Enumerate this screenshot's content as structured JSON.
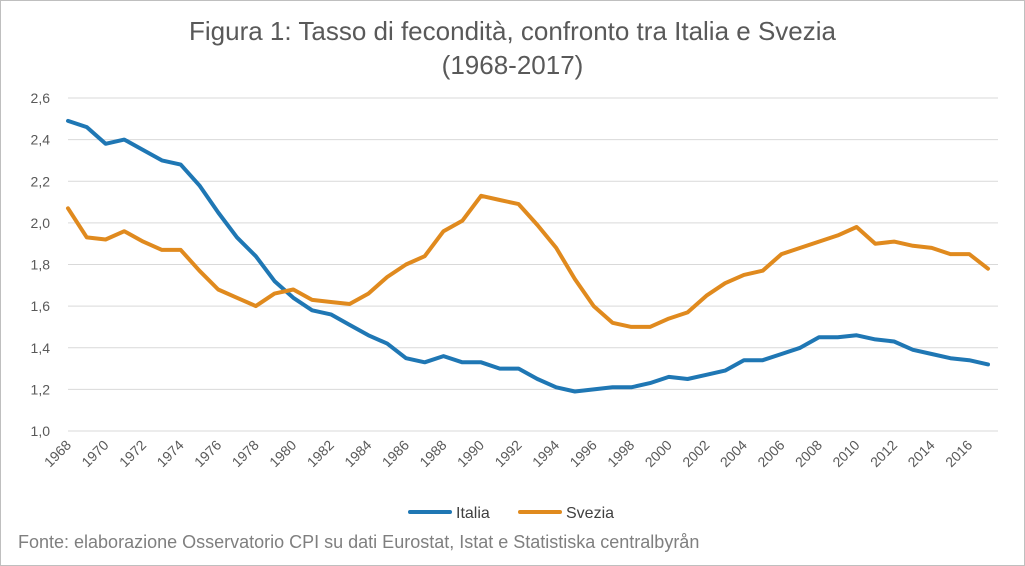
{
  "chart_data": {
    "type": "line",
    "title_line1": "Figura 1: Tasso di fecondità, confronto tra Italia e Svezia",
    "title_line2": "(1968-2017)",
    "source": "Fonte: elaborazione Osservatorio CPI su dati Eurostat, Istat e Statistiska centralbyrån",
    "x": [
      1968,
      1969,
      1970,
      1971,
      1972,
      1973,
      1974,
      1975,
      1976,
      1977,
      1978,
      1979,
      1980,
      1981,
      1982,
      1983,
      1984,
      1985,
      1986,
      1987,
      1988,
      1989,
      1990,
      1991,
      1992,
      1993,
      1994,
      1995,
      1996,
      1997,
      1998,
      1999,
      2000,
      2001,
      2002,
      2003,
      2004,
      2005,
      2006,
      2007,
      2008,
      2009,
      2010,
      2011,
      2012,
      2013,
      2014,
      2015,
      2016,
      2017
    ],
    "x_tick_labels": [
      "1968",
      "1970",
      "1972",
      "1974",
      "1976",
      "1978",
      "1980",
      "1982",
      "1984",
      "1986",
      "1988",
      "1990",
      "1992",
      "1994",
      "1996",
      "1998",
      "2000",
      "2002",
      "2004",
      "2006",
      "2008",
      "2010",
      "2012",
      "2014",
      "2016"
    ],
    "y_tick_labels": [
      "1,0",
      "1,2",
      "1,4",
      "1,6",
      "1,8",
      "2,0",
      "2,2",
      "2,4",
      "2,6"
    ],
    "y_ticks": [
      1.0,
      1.2,
      1.4,
      1.6,
      1.8,
      2.0,
      2.2,
      2.4,
      2.6
    ],
    "ylim": [
      1.0,
      2.6
    ],
    "grid": true,
    "legend_position": "bottom",
    "series": [
      {
        "name": "Italia",
        "color": "#1f77b4",
        "values": [
          2.49,
          2.46,
          2.38,
          2.4,
          2.35,
          2.3,
          2.28,
          2.18,
          2.05,
          1.93,
          1.84,
          1.72,
          1.64,
          1.58,
          1.56,
          1.51,
          1.46,
          1.42,
          1.35,
          1.33,
          1.36,
          1.33,
          1.33,
          1.3,
          1.3,
          1.25,
          1.21,
          1.19,
          1.2,
          1.21,
          1.21,
          1.23,
          1.26,
          1.25,
          1.27,
          1.29,
          1.34,
          1.34,
          1.37,
          1.4,
          1.45,
          1.45,
          1.46,
          1.44,
          1.43,
          1.39,
          1.37,
          1.35,
          1.34,
          1.32
        ]
      },
      {
        "name": "Svezia",
        "color": "#e08a1e",
        "values": [
          2.07,
          1.93,
          1.92,
          1.96,
          1.91,
          1.87,
          1.87,
          1.77,
          1.68,
          1.64,
          1.6,
          1.66,
          1.68,
          1.63,
          1.62,
          1.61,
          1.66,
          1.74,
          1.8,
          1.84,
          1.96,
          2.01,
          2.13,
          2.11,
          2.09,
          1.99,
          1.88,
          1.73,
          1.6,
          1.52,
          1.5,
          1.5,
          1.54,
          1.57,
          1.65,
          1.71,
          1.75,
          1.77,
          1.85,
          1.88,
          1.91,
          1.94,
          1.98,
          1.9,
          1.91,
          1.89,
          1.88,
          1.85,
          1.85,
          1.78
        ]
      }
    ]
  }
}
